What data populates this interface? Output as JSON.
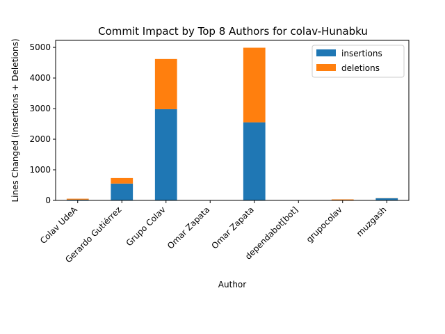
{
  "chart_data": {
    "type": "bar",
    "stacked": true,
    "title": "Commit Impact by Top 8 Authors for colav-Hunabku",
    "xlabel": "Author",
    "ylabel": "Lines Changed (Insertions + Deletions)",
    "categories": [
      "Colav UdeA",
      "Gerardo Gutiérrez",
      "Grupo Colav",
      "Omar  Zapata",
      "Omar Zapata",
      "dependabot[bot]",
      "grupocolav",
      "muzgash"
    ],
    "series": [
      {
        "name": "insertions",
        "color": "#1f77b4",
        "values": [
          25,
          550,
          2980,
          0,
          2550,
          2,
          8,
          70
        ]
      },
      {
        "name": "deletions",
        "color": "#ff7f0e",
        "values": [
          30,
          180,
          1640,
          0,
          2440,
          2,
          25,
          5
        ]
      }
    ],
    "ylim": [
      0,
      5230
    ],
    "yticks": [
      0,
      1000,
      2000,
      3000,
      4000,
      5000
    ],
    "grid": false,
    "legend_position": "top-right"
  }
}
